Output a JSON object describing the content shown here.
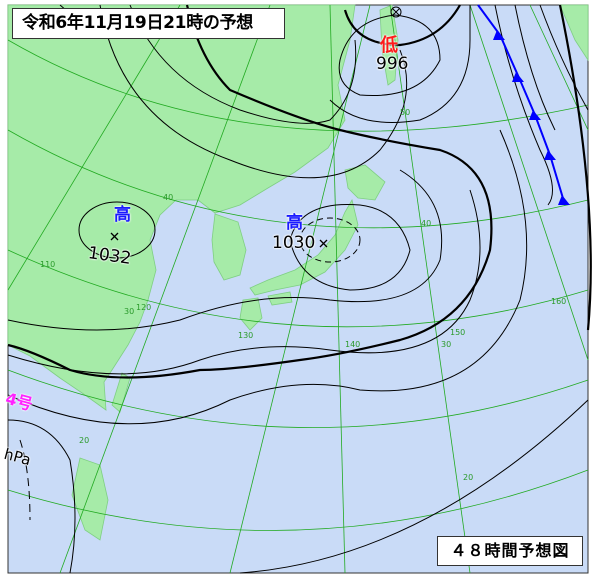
{
  "header": {
    "title": "令和6年11月19日21時の予想"
  },
  "footer": {
    "chart_kind": "４８時間予想図"
  },
  "pressure_systems": [
    {
      "type": "high",
      "symbol": "高",
      "pressure": "1032"
    },
    {
      "type": "high",
      "symbol": "高",
      "pressure": "1030"
    },
    {
      "type": "low",
      "symbol": "低",
      "pressure": "996"
    }
  ],
  "typhoon": {
    "label": "4号",
    "unit": "hPa"
  },
  "grid_labels": {
    "latitudes": [
      "50",
      "40",
      "40",
      "30",
      "30",
      "20",
      "20"
    ],
    "longitudes": [
      "110",
      "120",
      "130",
      "140",
      "150",
      "160"
    ]
  },
  "colors": {
    "sea": "#c9dbf7",
    "land": "#a6eba8",
    "grid": "#22aa22",
    "isobar": "#000000",
    "cold_front": "#0000ff",
    "high": "#1a1aff",
    "low": "#ff1a1a",
    "typhoon": "#ff22ff"
  }
}
